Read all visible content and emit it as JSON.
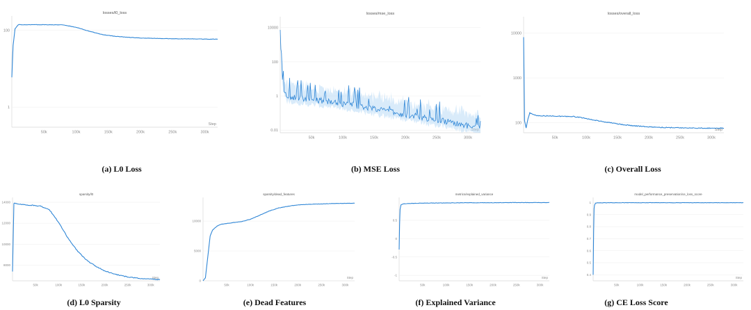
{
  "captions": [
    "(a) L0 Loss",
    "(b) MSE Loss",
    "(c) Overall Loss",
    "(d) L0 Sparsity",
    "(e) Dead Features",
    "(f) Explained Variance",
    "(g) CE Loss Score"
  ],
  "colors": {
    "line": "#2f86d6",
    "band": "#b9dbf5",
    "grid": "#ececec",
    "axis": "#d8d8d8",
    "tick": "#888888"
  },
  "chart_data": [
    {
      "id": "a",
      "type": "line",
      "title": "losses/l0_loss",
      "xlabel": "Step",
      "ylabel": "",
      "yscale": "log",
      "ylim": [
        0.3,
        200
      ],
      "xlim": [
        0,
        320000
      ],
      "xticks": [
        50000,
        100000,
        150000,
        200000,
        250000,
        300000
      ],
      "xtick_labels": [
        "50k",
        "100k",
        "150k",
        "200k",
        "250k",
        "300k"
      ],
      "yticks": [
        1,
        100
      ],
      "ytick_labels": [
        "1",
        "100"
      ],
      "series": [
        {
          "x": [
            0,
            2000,
            5000,
            10000,
            20000,
            40000,
            60000,
            80000,
            100000,
            120000,
            140000,
            160000,
            180000,
            200000,
            220000,
            240000,
            260000,
            280000,
            300000,
            320000
          ],
          "y": [
            6,
            40,
            110,
            140,
            140,
            140,
            140,
            138,
            120,
            95,
            78,
            70,
            66,
            63,
            62,
            61,
            60,
            60,
            59,
            59
          ]
        }
      ]
    },
    {
      "id": "b",
      "type": "line",
      "title": "losses/mse_loss",
      "xlabel": "Step",
      "ylabel": "",
      "yscale": "log",
      "ylim": [
        0.007,
        30000
      ],
      "xlim": [
        0,
        320000
      ],
      "xticks": [
        50000,
        100000,
        150000,
        200000,
        250000,
        300000
      ],
      "xtick_labels": [
        "50k",
        "100k",
        "150k",
        "200k",
        "250k",
        "300k"
      ],
      "yticks": [
        0.01,
        1,
        100,
        10000
      ],
      "ytick_labels": [
        "0.01",
        "1",
        "100",
        "10000"
      ],
      "series": [
        {
          "x": [
            0,
            2000,
            5000,
            10000,
            20000,
            40000,
            60000,
            80000,
            100000,
            120000,
            140000,
            160000,
            180000,
            200000,
            220000,
            240000,
            260000,
            280000,
            300000,
            320000
          ],
          "y": [
            5000,
            60,
            3,
            1,
            0.8,
            0.7,
            0.55,
            0.45,
            0.35,
            0.28,
            0.2,
            0.15,
            0.11,
            0.08,
            0.06,
            0.045,
            0.035,
            0.025,
            0.018,
            0.012
          ]
        }
      ]
    },
    {
      "id": "c",
      "type": "line",
      "title": "losses/overall_loss",
      "xlabel": "Step",
      "ylabel": "",
      "yscale": "log",
      "ylim": [
        60,
        20000
      ],
      "xlim": [
        0,
        320000
      ],
      "xticks": [
        50000,
        100000,
        150000,
        200000,
        250000,
        300000
      ],
      "xtick_labels": [
        "50k",
        "100k",
        "150k",
        "200k",
        "250k",
        "300k"
      ],
      "yticks": [
        100,
        1000,
        10000
      ],
      "ytick_labels": [
        "100",
        "1000",
        "10000"
      ],
      "series": [
        {
          "x": [
            0,
            1500,
            4000,
            7000,
            10000,
            20000,
            40000,
            60000,
            80000,
            100000,
            120000,
            140000,
            160000,
            180000,
            200000,
            220000,
            240000,
            260000,
            280000,
            300000,
            320000
          ],
          "y": [
            8000,
            110,
            78,
            125,
            165,
            145,
            142,
            140,
            138,
            125,
            110,
            100,
            90,
            85,
            81,
            79,
            78,
            77,
            76,
            76,
            76
          ]
        }
      ]
    },
    {
      "id": "d",
      "type": "line",
      "title": "sparsity/l0",
      "xlabel": "Step",
      "ylabel": "",
      "yscale": "linear",
      "ylim": [
        6500,
        14200
      ],
      "xlim": [
        0,
        320000
      ],
      "xticks": [
        50000,
        100000,
        150000,
        200000,
        250000,
        300000
      ],
      "xtick_labels": [
        "50k",
        "100k",
        "150k",
        "200k",
        "250k",
        "300k"
      ],
      "yticks": [
        8000,
        10000,
        12000,
        14000
      ],
      "ytick_labels": [
        "8000",
        "10000",
        "12000",
        "14000"
      ],
      "series": [
        {
          "x": [
            0,
            3000,
            10000,
            30000,
            60000,
            80000,
            100000,
            120000,
            140000,
            160000,
            180000,
            200000,
            220000,
            240000,
            260000,
            280000,
            300000,
            320000
          ],
          "y": [
            7400,
            13900,
            13850,
            13750,
            13650,
            13300,
            12100,
            10600,
            9400,
            8500,
            7900,
            7450,
            7150,
            6950,
            6820,
            6720,
            6660,
            6620
          ]
        }
      ]
    },
    {
      "id": "e",
      "type": "line",
      "title": "sparsity/dead_features",
      "xlabel": "Step",
      "ylabel": "",
      "yscale": "linear",
      "ylim": [
        0,
        13500
      ],
      "xlim": [
        0,
        320000
      ],
      "xticks": [
        50000,
        100000,
        150000,
        200000,
        250000,
        300000
      ],
      "xtick_labels": [
        "50k",
        "100k",
        "150k",
        "200k",
        "250k",
        "300k"
      ],
      "yticks": [
        0,
        5000,
        10000
      ],
      "ytick_labels": [
        "0",
        "5000",
        "10000"
      ],
      "series": [
        {
          "x": [
            0,
            5000,
            10000,
            15000,
            20000,
            30000,
            40000,
            60000,
            80000,
            100000,
            120000,
            140000,
            160000,
            180000,
            200000,
            220000,
            240000,
            260000,
            280000,
            300000,
            320000
          ],
          "y": [
            0,
            500,
            4000,
            7500,
            8500,
            9200,
            9500,
            9700,
            9900,
            10300,
            11000,
            11700,
            12200,
            12500,
            12700,
            12800,
            12850,
            12900,
            12950,
            12970,
            12980
          ]
        }
      ]
    },
    {
      "id": "f",
      "type": "line",
      "title": "metrics/explained_variance",
      "xlabel": "Step",
      "ylabel": "",
      "yscale": "linear",
      "ylim": [
        -1.15,
        1.05
      ],
      "xlim": [
        0,
        320000
      ],
      "xticks": [
        50000,
        100000,
        150000,
        200000,
        250000,
        300000
      ],
      "xtick_labels": [
        "50k",
        "100k",
        "150k",
        "200k",
        "250k",
        "300k"
      ],
      "yticks": [
        -1,
        -0.5,
        0,
        0.5
      ],
      "ytick_labels": [
        "-1",
        "-0.5",
        "0",
        "0.5"
      ],
      "series": [
        {
          "x": [
            0,
            1000,
            2000,
            4000,
            8000,
            20000,
            50000,
            100000,
            150000,
            200000,
            250000,
            300000,
            320000
          ],
          "y": [
            -0.3,
            0.4,
            0.8,
            0.92,
            0.95,
            0.96,
            0.97,
            0.975,
            0.98,
            0.98,
            0.985,
            0.985,
            0.985
          ]
        }
      ]
    },
    {
      "id": "g",
      "type": "line",
      "title": "model_performance_preservation/ce_loss_score",
      "xlabel": "Step",
      "ylabel": "",
      "yscale": "linear",
      "ylim": [
        0.35,
        1.02
      ],
      "xlim": [
        0,
        320000
      ],
      "xticks": [
        50000,
        100000,
        150000,
        200000,
        250000,
        300000
      ],
      "xtick_labels": [
        "50k",
        "100k",
        "150k",
        "200k",
        "250k",
        "300k"
      ],
      "yticks": [
        0.4,
        0.5,
        0.6,
        0.7,
        0.8,
        0.9,
        1
      ],
      "ytick_labels": [
        "0.4",
        "0.5",
        "0.6",
        "0.7",
        "0.8",
        "0.9",
        "1"
      ],
      "series": [
        {
          "x": [
            0,
            1000,
            2000,
            3000,
            5000,
            10000,
            50000,
            100000,
            200000,
            320000
          ],
          "y": [
            0.4,
            0.75,
            0.95,
            0.98,
            0.995,
            0.998,
            0.999,
            0.999,
            0.999,
            0.999
          ]
        }
      ]
    }
  ]
}
